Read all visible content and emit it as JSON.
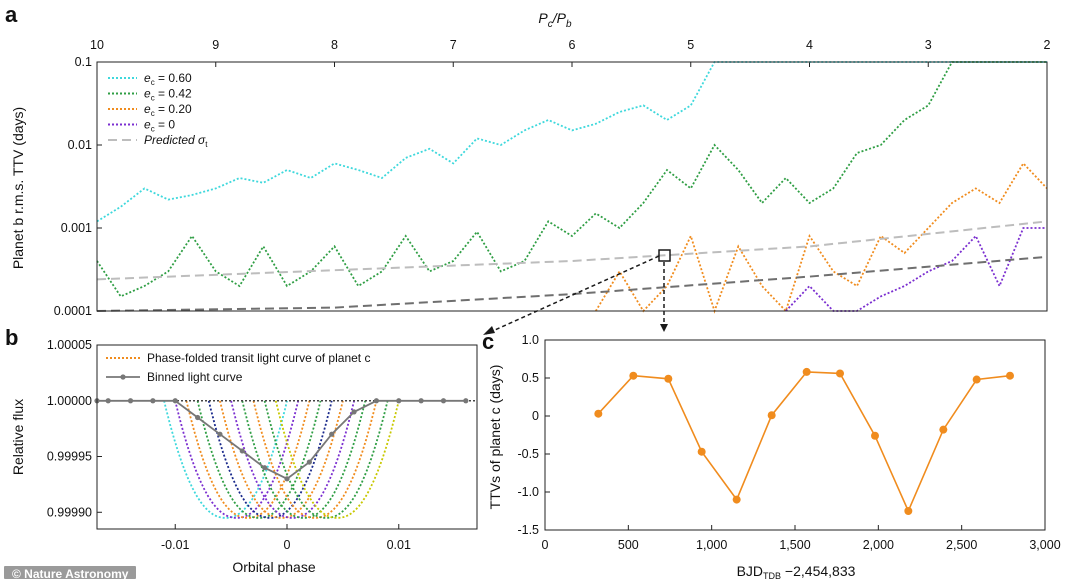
{
  "figure": {
    "panel_a_letter": "a",
    "panel_b_letter": "b",
    "panel_c_letter": "c",
    "credit": "© Nature Astronomy"
  },
  "chart_data": [
    {
      "panel": "a",
      "type": "line",
      "xlabel_top": "Pc/Pb",
      "xlabel_top_main": "P",
      "xlabel_top_sub1": "c",
      "xlabel_top_sep": "/P",
      "xlabel_top_sub2": "b",
      "ylabel": "Planet b r.m.s. TTV (days)",
      "x_reversed": true,
      "xlim": [
        10,
        2
      ],
      "ylim": [
        0.0001,
        0.1
      ],
      "yscale": "log",
      "x_ticks": [
        "10",
        "9",
        "8",
        "7",
        "6",
        "5",
        "4",
        "3",
        "2"
      ],
      "y_ticks": [
        "0.1",
        "0.01",
        "0.001",
        "0.0001"
      ],
      "legend_position": "top-left",
      "series": [
        {
          "name": "ec = 0.60",
          "label_main": "e",
          "label_sub": "c",
          "label_rest": " = 0.60",
          "color": "#3ed8dc",
          "style": "dotted",
          "x": [
            10.0,
            9.8,
            9.6,
            9.4,
            9.2,
            9.0,
            8.8,
            8.6,
            8.4,
            8.2,
            8.0,
            7.8,
            7.6,
            7.4,
            7.2,
            7.0,
            6.8,
            6.6,
            6.4,
            6.2,
            6.0,
            5.8,
            5.6,
            5.4,
            5.2,
            5.0,
            4.8,
            4.6,
            4.4,
            4.2,
            4.0,
            3.8,
            3.6,
            3.4,
            3.2,
            3.0,
            2.8,
            2.6,
            2.4,
            2.2,
            2.0
          ],
          "y": [
            0.0012,
            0.0018,
            0.003,
            0.0022,
            0.0025,
            0.003,
            0.004,
            0.0035,
            0.005,
            0.004,
            0.006,
            0.005,
            0.004,
            0.007,
            0.009,
            0.006,
            0.012,
            0.01,
            0.015,
            0.02,
            0.015,
            0.018,
            0.025,
            0.03,
            0.02,
            0.03,
            0.1,
            0.1,
            0.1,
            0.1,
            0.1,
            0.1,
            0.1,
            0.1,
            0.1,
            0.1,
            0.1,
            0.1,
            0.1,
            0.1,
            0.1
          ]
        },
        {
          "name": "ec = 0.42",
          "label_main": "e",
          "label_sub": "c",
          "label_rest": " = 0.42",
          "color": "#2f9e44",
          "style": "dotted",
          "x": [
            10.0,
            9.8,
            9.6,
            9.4,
            9.2,
            9.0,
            8.8,
            8.6,
            8.4,
            8.2,
            8.0,
            7.8,
            7.6,
            7.4,
            7.2,
            7.0,
            6.8,
            6.6,
            6.4,
            6.2,
            6.0,
            5.8,
            5.6,
            5.4,
            5.2,
            5.0,
            4.8,
            4.6,
            4.4,
            4.2,
            4.0,
            3.8,
            3.6,
            3.4,
            3.2,
            3.0,
            2.8,
            2.6,
            2.4,
            2.2,
            2.0
          ],
          "y": [
            0.0004,
            0.00015,
            0.0002,
            0.0003,
            0.0008,
            0.0003,
            0.0002,
            0.0006,
            0.0002,
            0.0003,
            0.0006,
            0.0002,
            0.0003,
            0.0008,
            0.0003,
            0.0004,
            0.0009,
            0.0003,
            0.0004,
            0.0012,
            0.0008,
            0.0015,
            0.001,
            0.002,
            0.005,
            0.003,
            0.01,
            0.005,
            0.002,
            0.004,
            0.002,
            0.003,
            0.008,
            0.01,
            0.02,
            0.03,
            0.1,
            0.1,
            0.1,
            0.1,
            0.1
          ]
        },
        {
          "name": "ec = 0.20",
          "label_main": "e",
          "label_sub": "c",
          "label_rest": " = 0.20",
          "color": "#f08c1e",
          "style": "dotted",
          "x": [
            5.8,
            5.6,
            5.4,
            5.2,
            5.0,
            4.8,
            4.6,
            4.4,
            4.2,
            4.0,
            3.8,
            3.6,
            3.4,
            3.2,
            3.0,
            2.8,
            2.6,
            2.4,
            2.2,
            2.0
          ],
          "y": [
            0.0001,
            0.0003,
            0.0001,
            0.0002,
            0.0008,
            0.0001,
            0.0006,
            0.0002,
            0.0001,
            0.0008,
            0.0003,
            0.0002,
            0.0008,
            0.0005,
            0.001,
            0.002,
            0.003,
            0.002,
            0.006,
            0.003
          ]
        },
        {
          "name": "ec = 0",
          "label_main": "e",
          "label_sub": "c",
          "label_rest": " = 0",
          "color": "#7b2fd0",
          "style": "dotted",
          "x": [
            4.2,
            4.0,
            3.8,
            3.6,
            3.4,
            3.2,
            3.0,
            2.8,
            2.6,
            2.4,
            2.2,
            2.0
          ],
          "y": [
            0.0001,
            0.0002,
            0.0001,
            0.0001,
            0.00015,
            0.0002,
            0.0003,
            0.0004,
            0.0008,
            0.0002,
            0.001,
            0.001
          ]
        },
        {
          "name": "Predicted σt",
          "label_main": "Predicted σ",
          "label_sub": "t",
          "label_rest": "",
          "color": "#bdbdbd",
          "style": "dashed",
          "x": [
            10,
            8,
            6,
            4,
            2
          ],
          "y": [
            0.00024,
            0.00031,
            0.0004,
            0.0006,
            0.0012
          ]
        },
        {
          "name": "",
          "label_main": "",
          "label_sub": "",
          "label_rest": "",
          "color": "#6f6f6f",
          "style": "dashed",
          "x": [
            10,
            8,
            6,
            4,
            2
          ],
          "y": [
            0.0001,
            0.00011,
            0.00016,
            0.00026,
            0.00045
          ]
        }
      ]
    },
    {
      "panel": "b",
      "type": "line",
      "xlabel": "Orbital phase",
      "ylabel": "Relative flux",
      "xlim": [
        -0.017,
        0.017
      ],
      "ylim": [
        0.999885,
        1.00005
      ],
      "x_ticks": [
        "-0.01",
        "0",
        "0.01"
      ],
      "x_tick_values": [
        -0.01,
        0,
        0.01
      ],
      "y_ticks": [
        "1.00005",
        "1.00000",
        "0.99995",
        "0.99990"
      ],
      "y_tick_values": [
        1.00005,
        1.0,
        0.99995,
        0.9999
      ],
      "legend_position": "top-right",
      "legend": [
        "Phase-folded transit light curve of planet c",
        "Binned light curve"
      ],
      "transit_depth": 0.000105,
      "transit_half_width": 0.0055,
      "folded_centers": [
        -0.0055,
        -0.0045,
        -0.0035,
        -0.0025,
        -0.0015,
        -0.0005,
        0.0005,
        0.0015,
        0.0025,
        0.0035,
        0.0045
      ],
      "folded_colors": [
        "#3ed8dc",
        "#7b2fd0",
        "#f08c1e",
        "#2f9e44",
        "#1a2a8c",
        "#f08c1e",
        "#7b2fd0",
        "#2f9e44",
        "#f08c1e",
        "#2f9e44",
        "#c8c800"
      ],
      "binned": {
        "color": "#777777",
        "x": [
          -0.017,
          -0.016,
          -0.014,
          -0.012,
          -0.01,
          -0.008,
          -0.006,
          -0.004,
          -0.002,
          0.0,
          0.002,
          0.004,
          0.006,
          0.008,
          0.01,
          0.012,
          0.014,
          0.016
        ],
        "y": [
          1.0,
          1.0,
          1.0,
          1.0,
          1.0,
          0.999985,
          0.99997,
          0.999955,
          0.99994,
          0.99993,
          0.999945,
          0.99997,
          0.99999,
          1.0,
          1.0,
          1.0,
          1.0,
          1.0
        ]
      }
    },
    {
      "panel": "c",
      "type": "line",
      "xlabel": "BJDTDB -2,454,833",
      "xlabel_main": "BJD",
      "xlabel_sub": "TDB",
      "xlabel_rest": " −2,454,833",
      "ylabel": "TTVs of planet c (days)",
      "xlim": [
        0,
        3000
      ],
      "ylim": [
        -1.5,
        1.0
      ],
      "x_ticks": [
        "0",
        "500",
        "1,000",
        "1,500",
        "2,000",
        "2,500",
        "3,000"
      ],
      "x_tick_values": [
        0,
        500,
        1000,
        1500,
        2000,
        2500,
        3000
      ],
      "y_ticks": [
        "1.0",
        "0.5",
        "0",
        "-0.5",
        "-1.0",
        "-1.5"
      ],
      "y_tick_values": [
        1.0,
        0.5,
        0,
        -0.5,
        -1.0,
        -1.5
      ],
      "color": "#f08c1e",
      "x": [
        320,
        530,
        740,
        940,
        1150,
        1360,
        1570,
        1770,
        1980,
        2180,
        2390,
        2590,
        2790
      ],
      "y": [
        0.03,
        0.53,
        0.49,
        -0.47,
        -1.1,
        0.01,
        0.58,
        0.56,
        -0.26,
        -1.25,
        -0.18,
        0.48,
        0.53
      ]
    }
  ]
}
